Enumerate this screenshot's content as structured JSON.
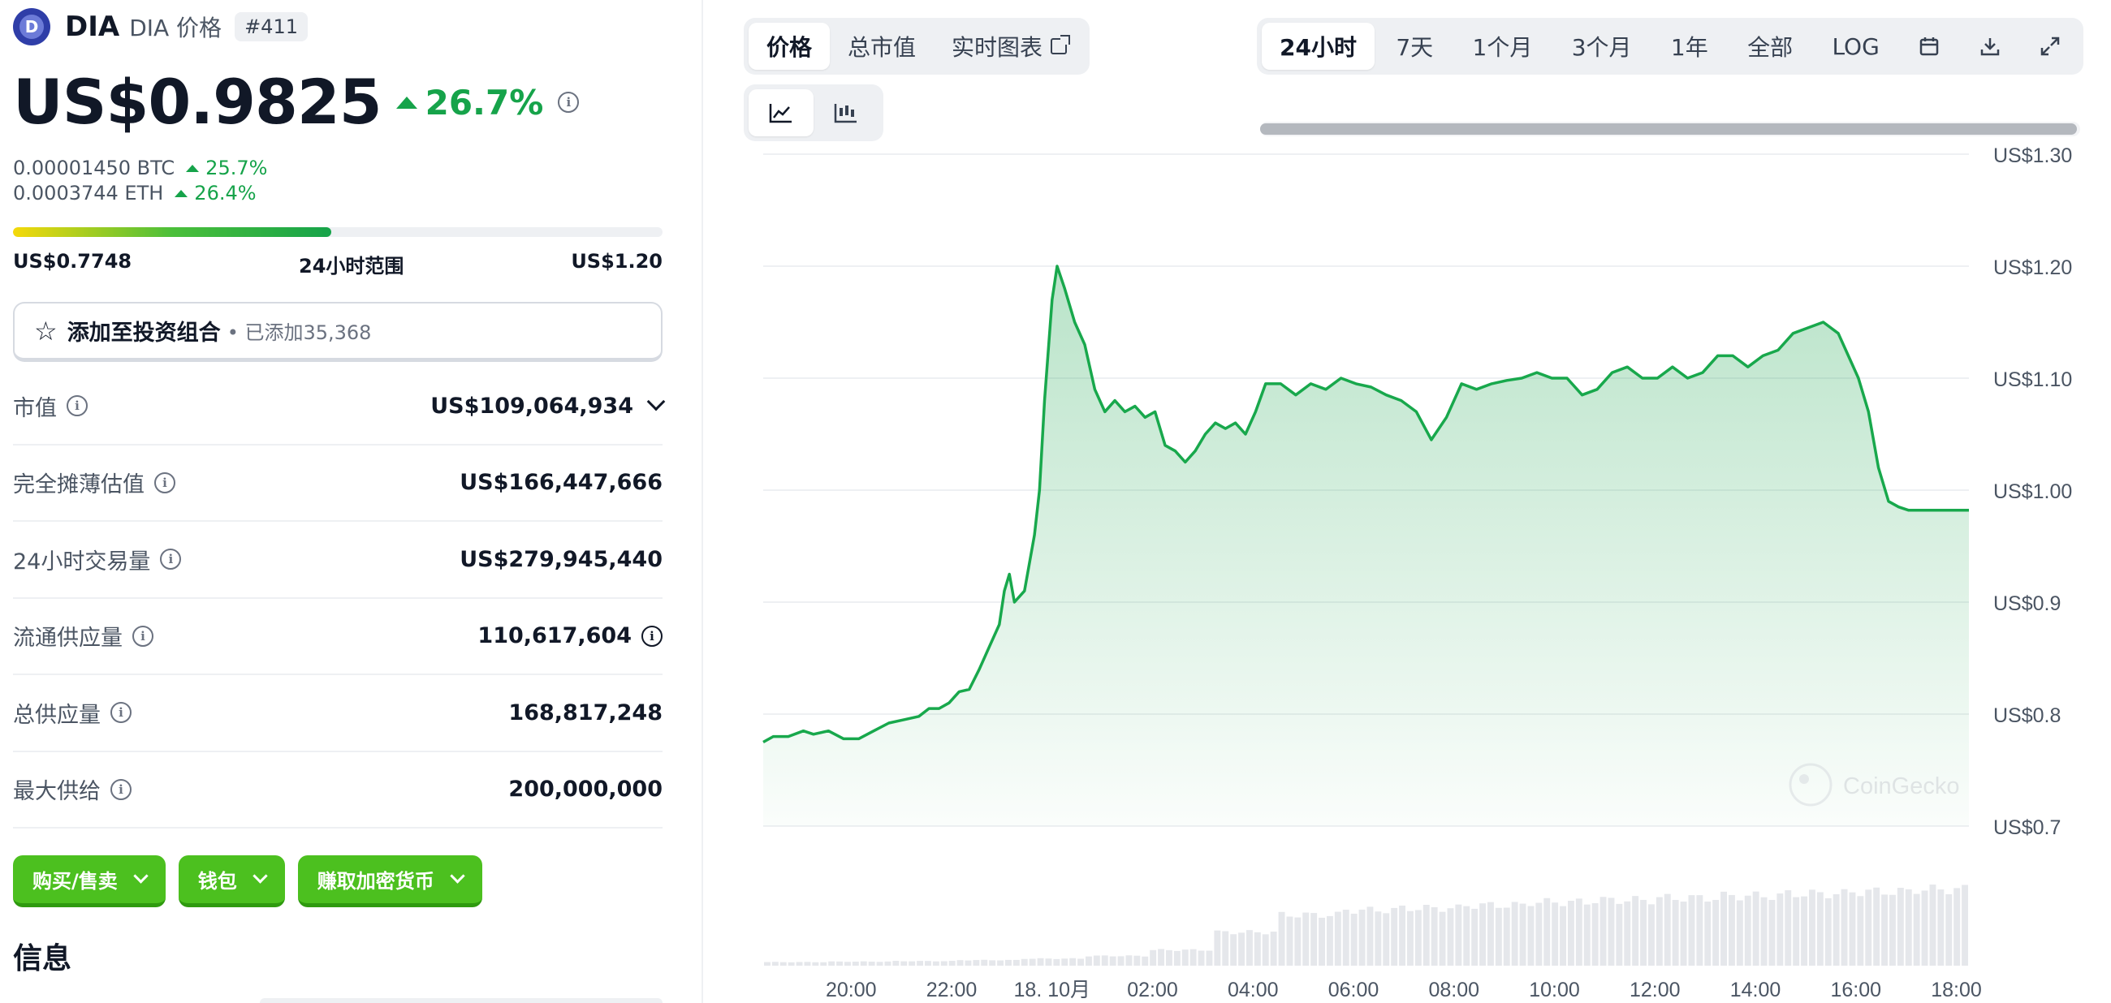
{
  "coin": {
    "logo_letter": "D",
    "symbol": "DIA",
    "name": "DIA 价格",
    "rank": "#411",
    "price": "US$0.9825",
    "change_24h": "26.7%",
    "btc_price": "0.00001450 BTC",
    "btc_change": "25.7%",
    "eth_price": "0.0003744 ETH",
    "eth_change": "26.4%",
    "range_low": "US$0.7748",
    "range_label": "24小时范围",
    "range_high": "US$1.20",
    "range_fraction": 0.49
  },
  "portfolio": {
    "label": "添加至投资组合",
    "added": "• 已添加35,368"
  },
  "stats": [
    {
      "label": "市值",
      "value": "US$109,064,934"
    },
    {
      "label": "完全摊薄估值",
      "value": "US$166,447,666"
    },
    {
      "label": "24小时交易量",
      "value": "US$279,945,440"
    },
    {
      "label": "流通供应量",
      "value": "110,617,604"
    },
    {
      "label": "总供应量",
      "value": "168,817,248"
    },
    {
      "label": "最大供给",
      "value": "200,000,000"
    }
  ],
  "actions": [
    "购买/售卖",
    "钱包",
    "赚取加密货币"
  ],
  "info_title": "信息",
  "chart_tabs": {
    "price": "价格",
    "market_cap": "总市值",
    "live_chart": "实时图表"
  },
  "ranges": {
    "d1": "24小时",
    "d7": "7天",
    "m1": "1个月",
    "m3": "3个月",
    "y1": "1年",
    "all": "全部",
    "log": "LOG"
  },
  "watermark": "CoinGecko",
  "colors": {
    "accent_green": "#16a34a",
    "buy_green": "#4cc01f",
    "line": "#18a84c"
  },
  "icons": [
    "star-icon",
    "info-icon",
    "chevron-down-icon",
    "external-link-icon",
    "line-chart-icon",
    "candlestick-icon",
    "calendar-icon",
    "download-icon",
    "expand-icon"
  ],
  "chart_data": {
    "type": "area",
    "ylabel": "",
    "ylim": [
      0.7,
      1.3
    ],
    "y_ticks": [
      "US$1.30",
      "US$1.20",
      "US$1.10",
      "US$1.00",
      "US$0.9",
      "US$0.8",
      "US$0.7"
    ],
    "y_tick_values": [
      1.3,
      1.2,
      1.1,
      1.0,
      0.9,
      0.8,
      0.7
    ],
    "x_ticks": [
      "20:00",
      "22:00",
      "18. 10月",
      "02:00",
      "04:00",
      "06:00",
      "08:00",
      "10:00",
      "12:00",
      "14:00",
      "16:00",
      "18:00"
    ],
    "x_tick_hours": [
      1.75,
      3.75,
      5.75,
      7.75,
      9.75,
      11.75,
      13.75,
      15.75,
      17.75,
      19.75,
      21.75,
      23.75
    ],
    "x_range_hours": [
      0,
      24
    ],
    "series": [
      {
        "x_hours": [
          0.0,
          0.2,
          0.5,
          0.8,
          1.0,
          1.3,
          1.6,
          1.9,
          2.2,
          2.5,
          2.8,
          3.1,
          3.3,
          3.5,
          3.7,
          3.9,
          4.1,
          4.3,
          4.5,
          4.7,
          4.8,
          4.9,
          5.0,
          5.2,
          5.4,
          5.5,
          5.6,
          5.75,
          5.85,
          6.0,
          6.2,
          6.4,
          6.6,
          6.8,
          7.0,
          7.2,
          7.4,
          7.6,
          7.8,
          8.0,
          8.2,
          8.4,
          8.6,
          8.8,
          9.0,
          9.2,
          9.4,
          9.6,
          9.8,
          10.0,
          10.3,
          10.6,
          10.9,
          11.2,
          11.5,
          11.8,
          12.1,
          12.4,
          12.7,
          13.0,
          13.3,
          13.6,
          13.9,
          14.2,
          14.5,
          14.8,
          15.1,
          15.4,
          15.7,
          16.0,
          16.3,
          16.6,
          16.9,
          17.2,
          17.5,
          17.8,
          18.1,
          18.4,
          18.7,
          19.0,
          19.3,
          19.6,
          19.9,
          20.2,
          20.5,
          20.8,
          21.1,
          21.4,
          21.6,
          21.8,
          22.0,
          22.2,
          22.4,
          22.6,
          22.8,
          23.0,
          23.2,
          23.4,
          23.6,
          23.8,
          24.0
        ],
        "values": [
          0.775,
          0.78,
          0.78,
          0.785,
          0.782,
          0.785,
          0.778,
          0.778,
          0.785,
          0.792,
          0.795,
          0.798,
          0.805,
          0.805,
          0.81,
          0.82,
          0.822,
          0.84,
          0.86,
          0.88,
          0.91,
          0.925,
          0.9,
          0.91,
          0.96,
          1.0,
          1.08,
          1.17,
          1.2,
          1.18,
          1.15,
          1.13,
          1.09,
          1.07,
          1.08,
          1.07,
          1.075,
          1.065,
          1.07,
          1.04,
          1.035,
          1.025,
          1.035,
          1.05,
          1.06,
          1.055,
          1.06,
          1.05,
          1.07,
          1.095,
          1.095,
          1.085,
          1.095,
          1.09,
          1.1,
          1.095,
          1.092,
          1.085,
          1.08,
          1.07,
          1.045,
          1.065,
          1.095,
          1.09,
          1.095,
          1.098,
          1.1,
          1.105,
          1.1,
          1.1,
          1.085,
          1.09,
          1.105,
          1.11,
          1.1,
          1.1,
          1.11,
          1.1,
          1.105,
          1.12,
          1.12,
          1.11,
          1.12,
          1.125,
          1.14,
          1.145,
          1.15,
          1.14,
          1.12,
          1.1,
          1.07,
          1.02,
          0.99,
          0.985,
          0.982,
          0.982,
          0.982,
          0.982,
          0.982,
          0.982,
          0.982
        ]
      }
    ],
    "volume_note_levels": [
      0.08,
      0.09,
      0.1,
      0.12,
      0.15,
      0.2,
      0.3,
      0.55,
      0.75,
      0.8,
      0.82,
      0.85,
      0.88,
      0.9,
      0.92,
      0.94,
      0.96,
      0.98,
      1.0
    ],
    "grid": true,
    "legend": "none"
  }
}
